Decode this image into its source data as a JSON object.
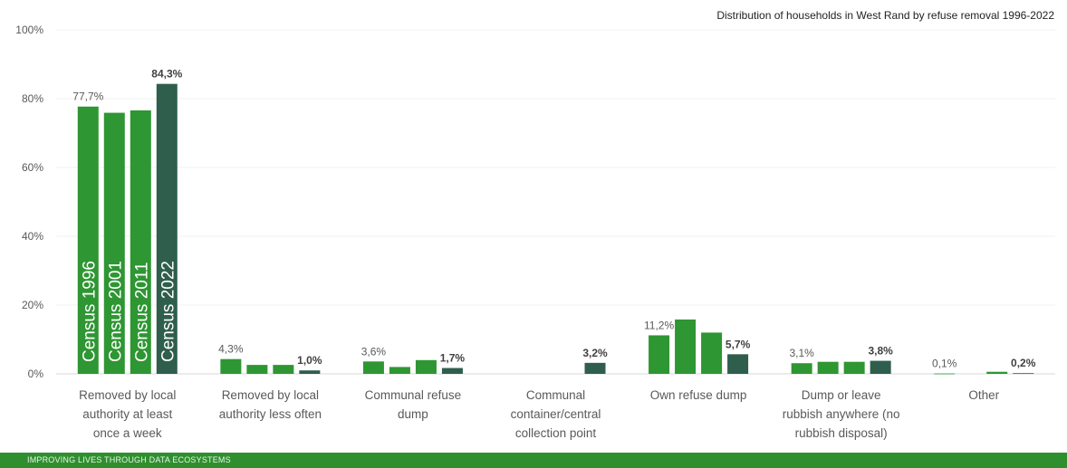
{
  "chart_data": {
    "type": "bar",
    "title": "Distribution of households  in West Rand by refuse removal  1996-2022",
    "categories": [
      [
        "Removed by local",
        "authority at least",
        "once a week"
      ],
      [
        "Removed by local",
        "authority less often"
      ],
      [
        "Communal refuse",
        "dump"
      ],
      [
        "Communal",
        "container/central",
        "collection point"
      ],
      [
        "Own refuse dump"
      ],
      [
        "Dump or leave",
        "rubbish anywhere (no",
        "rubbish disposal)"
      ],
      [
        "Other"
      ]
    ],
    "series": [
      {
        "name": "Census 1996",
        "color": "#2e9632",
        "values": [
          77.7,
          4.3,
          3.6,
          null,
          11.2,
          3.1,
          0.1
        ]
      },
      {
        "name": "Census 2001",
        "color": "#2e9632",
        "values": [
          75.9,
          2.6,
          2.0,
          null,
          15.8,
          3.5,
          null
        ]
      },
      {
        "name": "Census 2011",
        "color": "#2e9632",
        "values": [
          76.6,
          2.6,
          4.0,
          null,
          12.0,
          3.5,
          0.6
        ]
      },
      {
        "name": "Census 2022",
        "color": "#2f5e4d",
        "values": [
          84.3,
          1.0,
          1.7,
          3.2,
          5.7,
          3.8,
          0.2
        ]
      }
    ],
    "data_labels": [
      {
        "category": 0,
        "series": 0,
        "text": "77,7%"
      },
      {
        "category": 0,
        "series": 3,
        "text": "84,3%"
      },
      {
        "category": 1,
        "series": 0,
        "text": "4,3%"
      },
      {
        "category": 1,
        "series": 3,
        "text": "1,0%"
      },
      {
        "category": 2,
        "series": 0,
        "text": "3,6%"
      },
      {
        "category": 2,
        "series": 3,
        "text": "1,7%"
      },
      {
        "category": 3,
        "series": 3,
        "text": "3,2%"
      },
      {
        "category": 4,
        "series": 0,
        "text": "11,2%"
      },
      {
        "category": 4,
        "series": 3,
        "text": "5,7%"
      },
      {
        "category": 5,
        "series": 0,
        "text": "3,1%"
      },
      {
        "category": 5,
        "series": 3,
        "text": "3,8%"
      },
      {
        "category": 6,
        "series": 0,
        "text": "0,1%"
      },
      {
        "category": 6,
        "series": 3,
        "text": "0,2%"
      }
    ],
    "yticks": [
      "0%",
      "20%",
      "40%",
      "60%",
      "80%",
      "100%"
    ],
    "ylim": [
      0,
      100
    ],
    "grid": true
  },
  "footer": {
    "text": "IMPROVING  LIVES THROUGH DATA  ECOSYSTEMS"
  }
}
